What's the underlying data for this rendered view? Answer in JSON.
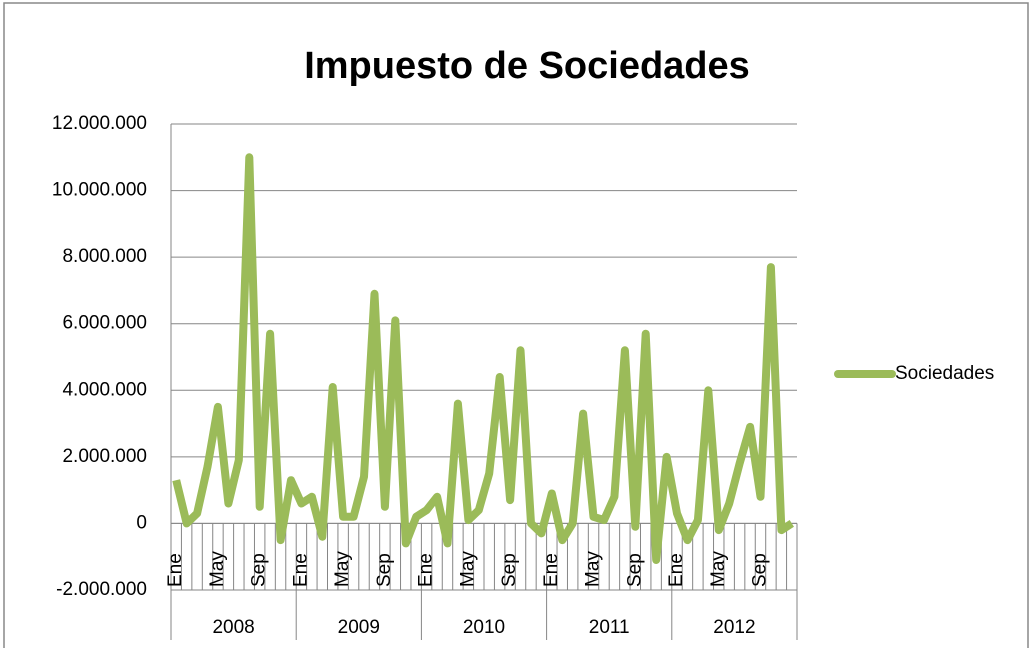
{
  "chart_data": {
    "type": "line",
    "title": "Impuesto de Sociedades",
    "categories": [
      "Ene",
      null,
      null,
      null,
      "May",
      null,
      null,
      null,
      "Sep",
      null,
      null,
      null,
      "Ene",
      null,
      null,
      null,
      "May",
      null,
      null,
      null,
      "Sep",
      null,
      null,
      null,
      "Ene",
      null,
      null,
      null,
      "May",
      null,
      null,
      null,
      "Sep",
      null,
      null,
      null,
      "Ene",
      null,
      null,
      null,
      "May",
      null,
      null,
      null,
      "Sep",
      null,
      null,
      null,
      "Ene",
      null,
      null,
      null,
      "May",
      null,
      null,
      null,
      "Sep",
      null,
      null,
      null
    ],
    "category_groups": [
      "2008",
      "2009",
      "2010",
      "2011",
      "2012"
    ],
    "series": [
      {
        "name": "Sociedades",
        "color": "#9bbb59",
        "values": [
          1300000,
          0,
          300000,
          1700000,
          3500000,
          600000,
          1900000,
          11000000,
          500000,
          5700000,
          -500000,
          1300000,
          600000,
          800000,
          -400000,
          4100000,
          200000,
          200000,
          1400000,
          6900000,
          500000,
          6100000,
          -600000,
          200000,
          400000,
          800000,
          -600000,
          3600000,
          100000,
          400000,
          1500000,
          4400000,
          700000,
          5200000,
          0,
          -300000,
          900000,
          -500000,
          0,
          3300000,
          200000,
          100000,
          800000,
          5200000,
          -100000,
          5700000,
          -1100000,
          2000000,
          300000,
          -500000,
          100000,
          4000000,
          -200000,
          600000,
          1800000,
          2900000,
          800000,
          7700000,
          -200000,
          0
        ]
      }
    ],
    "ylim": [
      -2000000,
      12000000
    ],
    "yticks": [
      {
        "value": -2000000,
        "label": "-2.000.000"
      },
      0,
      {
        "value": 2000000,
        "label": "2.000.000"
      },
      {
        "value": 4000000,
        "label": "4.000.000"
      },
      {
        "value": 6000000,
        "label": "6.000.000"
      },
      {
        "value": 8000000,
        "label": "8.000.000"
      },
      {
        "value": 10000000,
        "label": "10.000.000"
      },
      {
        "value": 12000000,
        "label": "12.000.000"
      }
    ],
    "grid": true,
    "legend": "right"
  }
}
